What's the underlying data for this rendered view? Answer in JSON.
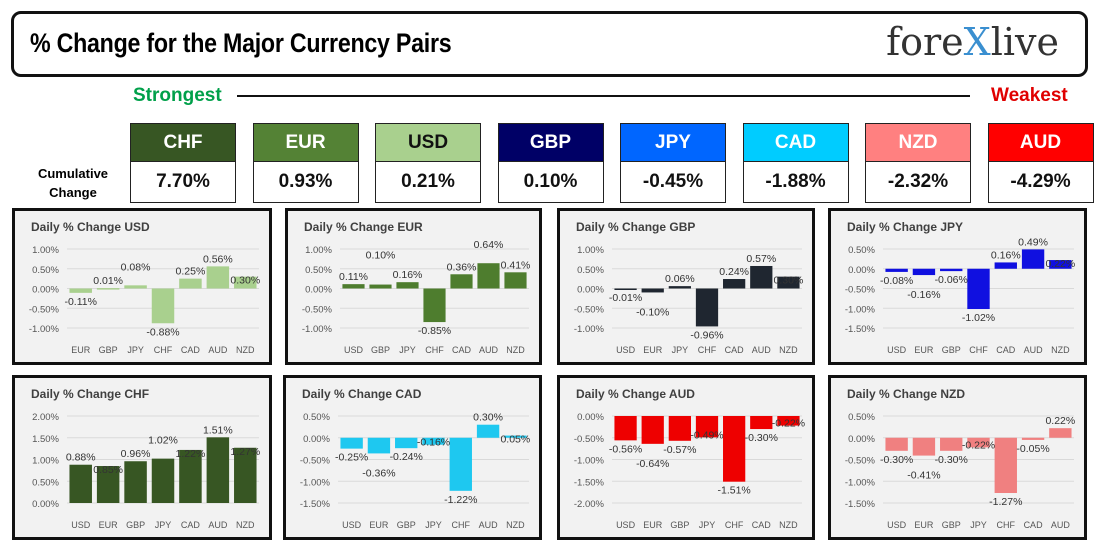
{
  "header": {
    "title": "% Change for the Major Currency Pairs",
    "logo_text": "forexlive"
  },
  "scale": {
    "strongest": "Strongest",
    "weakest": "Weakest"
  },
  "cumulative_label": "Cumulative Change",
  "currencies": [
    {
      "code": "CHF",
      "value": "7.70%",
      "color": "#375623"
    },
    {
      "code": "EUR",
      "value": "0.93%",
      "color": "#548235"
    },
    {
      "code": "USD",
      "value": "0.21%",
      "color": "#a9d08e"
    },
    {
      "code": "GBP",
      "value": "0.10%",
      "color": "#000066"
    },
    {
      "code": "JPY",
      "value": "-0.45%",
      "color": "#0066ff"
    },
    {
      "code": "CAD",
      "value": "-1.88%",
      "color": "#00ccff"
    },
    {
      "code": "NZD",
      "value": "-2.32%",
      "color": "#ff8080"
    },
    {
      "code": "AUD",
      "value": "-4.29%",
      "color": "#ff0000"
    }
  ],
  "chart_data": [
    {
      "type": "bar",
      "title": "Daily % Change USD",
      "categories": [
        "EUR",
        "GBP",
        "JPY",
        "CHF",
        "CAD",
        "AUD",
        "NZD"
      ],
      "values": [
        -0.11,
        0.01,
        0.08,
        -0.88,
        0.25,
        0.56,
        0.3
      ],
      "ylim": [
        -1,
        1
      ],
      "ticks": [
        1,
        0.5,
        0,
        -0.5,
        -1
      ],
      "color": "#a9d08e"
    },
    {
      "type": "bar",
      "title": "Daily % Change EUR",
      "categories": [
        "USD",
        "GBP",
        "JPY",
        "CHF",
        "CAD",
        "AUD",
        "NZD"
      ],
      "values": [
        0.11,
        0.1,
        0.16,
        -0.85,
        0.36,
        0.64,
        0.41
      ],
      "ylim": [
        -1,
        1
      ],
      "ticks": [
        1,
        0.5,
        0,
        -0.5,
        -1
      ],
      "color": "#4e7d2e"
    },
    {
      "type": "bar",
      "title": "Daily % Change GBP",
      "categories": [
        "USD",
        "EUR",
        "JPY",
        "CHF",
        "CAD",
        "AUD",
        "NZD"
      ],
      "values": [
        -0.01,
        -0.1,
        0.06,
        -0.96,
        0.24,
        0.57,
        0.3
      ],
      "ylim": [
        -1,
        1
      ],
      "ticks": [
        1,
        0.5,
        0,
        -0.5,
        -1
      ],
      "color": "#1f2630"
    },
    {
      "type": "bar",
      "title": "Daily % Change JPY",
      "categories": [
        "USD",
        "EUR",
        "GBP",
        "CHF",
        "CAD",
        "AUD",
        "NZD"
      ],
      "values": [
        -0.08,
        -0.16,
        -0.06,
        -1.02,
        0.16,
        0.49,
        0.22
      ],
      "ylim": [
        -1.5,
        0.5
      ],
      "ticks": [
        0.5,
        0,
        -0.5,
        -1,
        -1.5
      ],
      "color": "#1010e0"
    },
    {
      "type": "bar",
      "title": "Daily % Change CHF",
      "categories": [
        "USD",
        "EUR",
        "GBP",
        "JPY",
        "CAD",
        "AUD",
        "NZD"
      ],
      "values": [
        0.88,
        0.85,
        0.96,
        1.02,
        1.22,
        1.51,
        1.27
      ],
      "ylim": [
        0,
        2
      ],
      "ticks": [
        2,
        1.5,
        1,
        0.5,
        0
      ],
      "color": "#375623"
    },
    {
      "type": "bar",
      "title": "Daily % Change CAD",
      "categories": [
        "USD",
        "EUR",
        "GBP",
        "JPY",
        "CHF",
        "AUD",
        "NZD"
      ],
      "values": [
        -0.25,
        -0.36,
        -0.24,
        -0.16,
        -1.22,
        0.3,
        0.05
      ],
      "ylim": [
        -1.5,
        0.5
      ],
      "ticks": [
        0.5,
        0,
        -0.5,
        -1,
        -1.5
      ],
      "color": "#1ec8f0"
    },
    {
      "type": "bar",
      "title": "Daily % Change AUD",
      "categories": [
        "USD",
        "EUR",
        "GBP",
        "JPY",
        "CHF",
        "CAD",
        "NZD"
      ],
      "values": [
        -0.56,
        -0.64,
        -0.57,
        -0.49,
        -1.51,
        -0.3,
        -0.22
      ],
      "ylim": [
        -2,
        0
      ],
      "ticks": [
        0,
        -0.5,
        -1,
        -1.5,
        -2
      ],
      "color": "#ee0000"
    },
    {
      "type": "bar",
      "title": "Daily % Change NZD",
      "categories": [
        "USD",
        "EUR",
        "GBP",
        "JPY",
        "CHF",
        "CAD",
        "AUD"
      ],
      "values": [
        -0.3,
        -0.41,
        -0.3,
        -0.22,
        -1.27,
        -0.05,
        0.22
      ],
      "ylim": [
        -1.5,
        0.5
      ],
      "ticks": [
        0.5,
        0,
        -0.5,
        -1,
        -1.5
      ],
      "color": "#f08080"
    }
  ]
}
